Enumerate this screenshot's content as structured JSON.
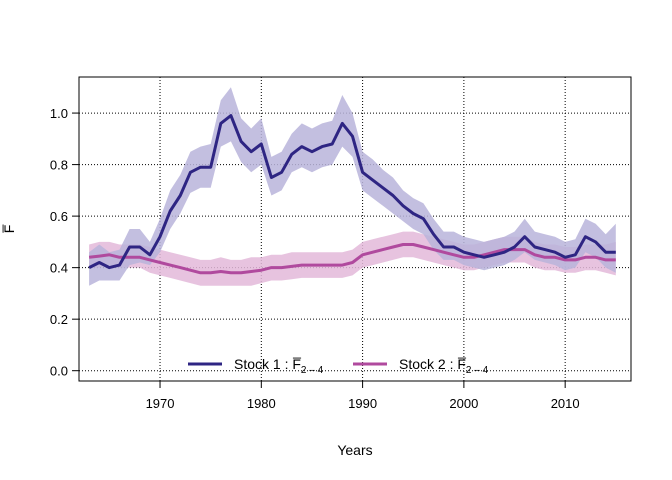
{
  "chart_data": {
    "type": "line",
    "title": "",
    "xlabel": "Years",
    "ylabel": "F̅",
    "xlim": [
      1962,
      2016.5
    ],
    "ylim": [
      -0.04,
      1.14
    ],
    "xticks": [
      1970,
      1980,
      1990,
      2000,
      2010
    ],
    "yticks": [
      0.0,
      0.2,
      0.4,
      0.6,
      0.8,
      1.0
    ],
    "xtick_labels": [
      "1970",
      "1980",
      "1990",
      "2000",
      "2010"
    ],
    "ytick_labels": [
      "0.0",
      "0.2",
      "0.4",
      "0.6",
      "0.8",
      "1.0"
    ],
    "grid": true,
    "legend_position": "bottom-center",
    "x": [
      1963,
      1964,
      1965,
      1966,
      1967,
      1968,
      1969,
      1970,
      1971,
      1972,
      1973,
      1974,
      1975,
      1976,
      1977,
      1978,
      1979,
      1980,
      1981,
      1982,
      1983,
      1984,
      1985,
      1986,
      1987,
      1988,
      1989,
      1990,
      1991,
      1992,
      1993,
      1994,
      1995,
      1996,
      1997,
      1998,
      1999,
      2000,
      2001,
      2002,
      2003,
      2004,
      2005,
      2006,
      2007,
      2008,
      2009,
      2010,
      2011,
      2012,
      2013,
      2014,
      2015
    ],
    "series": [
      {
        "name": "Stock 1",
        "legend_prefix": "Stock  1 :  ",
        "legend_symbol": "F̅",
        "legend_subscript": "2 – 4",
        "line_color": "#2e2583",
        "band_color": "#b9b4db",
        "values": [
          0.4,
          0.42,
          0.4,
          0.41,
          0.48,
          0.48,
          0.45,
          0.52,
          0.62,
          0.68,
          0.77,
          0.79,
          0.79,
          0.96,
          0.99,
          0.89,
          0.85,
          0.88,
          0.75,
          0.77,
          0.84,
          0.87,
          0.85,
          0.87,
          0.88,
          0.96,
          0.91,
          0.77,
          0.74,
          0.71,
          0.68,
          0.64,
          0.61,
          0.59,
          0.53,
          0.48,
          0.48,
          0.46,
          0.45,
          0.44,
          0.45,
          0.46,
          0.48,
          0.52,
          0.48,
          0.47,
          0.46,
          0.44,
          0.45,
          0.52,
          0.5,
          0.46,
          0.46
        ],
        "lower": [
          0.33,
          0.35,
          0.35,
          0.35,
          0.41,
          0.42,
          0.41,
          0.46,
          0.55,
          0.61,
          0.69,
          0.71,
          0.71,
          0.87,
          0.89,
          0.81,
          0.77,
          0.8,
          0.68,
          0.7,
          0.77,
          0.79,
          0.77,
          0.79,
          0.8,
          0.87,
          0.83,
          0.7,
          0.67,
          0.64,
          0.61,
          0.58,
          0.55,
          0.53,
          0.47,
          0.43,
          0.43,
          0.41,
          0.4,
          0.39,
          0.4,
          0.41,
          0.43,
          0.46,
          0.43,
          0.42,
          0.41,
          0.39,
          0.4,
          0.46,
          0.44,
          0.4,
          0.38
        ],
        "upper": [
          0.46,
          0.49,
          0.46,
          0.47,
          0.55,
          0.55,
          0.5,
          0.59,
          0.7,
          0.76,
          0.85,
          0.87,
          0.88,
          1.05,
          1.1,
          0.98,
          0.94,
          0.98,
          0.83,
          0.85,
          0.92,
          0.96,
          0.94,
          0.96,
          0.97,
          1.07,
          1.0,
          0.85,
          0.82,
          0.78,
          0.75,
          0.7,
          0.67,
          0.65,
          0.59,
          0.54,
          0.54,
          0.52,
          0.51,
          0.5,
          0.51,
          0.52,
          0.54,
          0.59,
          0.54,
          0.53,
          0.52,
          0.5,
          0.51,
          0.59,
          0.57,
          0.53,
          0.57
        ]
      },
      {
        "name": "Stock 2",
        "legend_prefix": "Stock  2 :  ",
        "legend_symbol": "F̅",
        "legend_subscript": "2 – 4",
        "line_color": "#b04a9e",
        "band_color": "#e3b8d9",
        "values": [
          0.44,
          0.445,
          0.45,
          0.44,
          0.44,
          0.44,
          0.43,
          0.42,
          0.41,
          0.4,
          0.39,
          0.38,
          0.38,
          0.385,
          0.38,
          0.38,
          0.385,
          0.39,
          0.4,
          0.4,
          0.405,
          0.41,
          0.41,
          0.41,
          0.41,
          0.41,
          0.42,
          0.45,
          0.46,
          0.47,
          0.48,
          0.49,
          0.49,
          0.48,
          0.47,
          0.46,
          0.45,
          0.44,
          0.44,
          0.45,
          0.46,
          0.47,
          0.47,
          0.47,
          0.45,
          0.44,
          0.44,
          0.43,
          0.43,
          0.44,
          0.44,
          0.43,
          0.43
        ],
        "lower": [
          0.4,
          0.4,
          0.41,
          0.4,
          0.4,
          0.4,
          0.38,
          0.37,
          0.36,
          0.35,
          0.34,
          0.33,
          0.33,
          0.33,
          0.33,
          0.33,
          0.33,
          0.34,
          0.35,
          0.35,
          0.355,
          0.36,
          0.36,
          0.36,
          0.36,
          0.36,
          0.37,
          0.4,
          0.41,
          0.42,
          0.43,
          0.44,
          0.44,
          0.43,
          0.42,
          0.41,
          0.4,
          0.39,
          0.39,
          0.4,
          0.41,
          0.42,
          0.42,
          0.42,
          0.4,
          0.39,
          0.39,
          0.38,
          0.38,
          0.39,
          0.39,
          0.38,
          0.37
        ],
        "upper": [
          0.49,
          0.5,
          0.5,
          0.49,
          0.49,
          0.49,
          0.48,
          0.47,
          0.46,
          0.45,
          0.44,
          0.43,
          0.43,
          0.44,
          0.43,
          0.43,
          0.44,
          0.44,
          0.45,
          0.45,
          0.46,
          0.46,
          0.46,
          0.46,
          0.46,
          0.46,
          0.47,
          0.5,
          0.51,
          0.52,
          0.53,
          0.54,
          0.54,
          0.53,
          0.52,
          0.51,
          0.5,
          0.49,
          0.49,
          0.5,
          0.51,
          0.52,
          0.52,
          0.52,
          0.5,
          0.49,
          0.49,
          0.48,
          0.48,
          0.49,
          0.49,
          0.49,
          0.5
        ]
      }
    ]
  }
}
